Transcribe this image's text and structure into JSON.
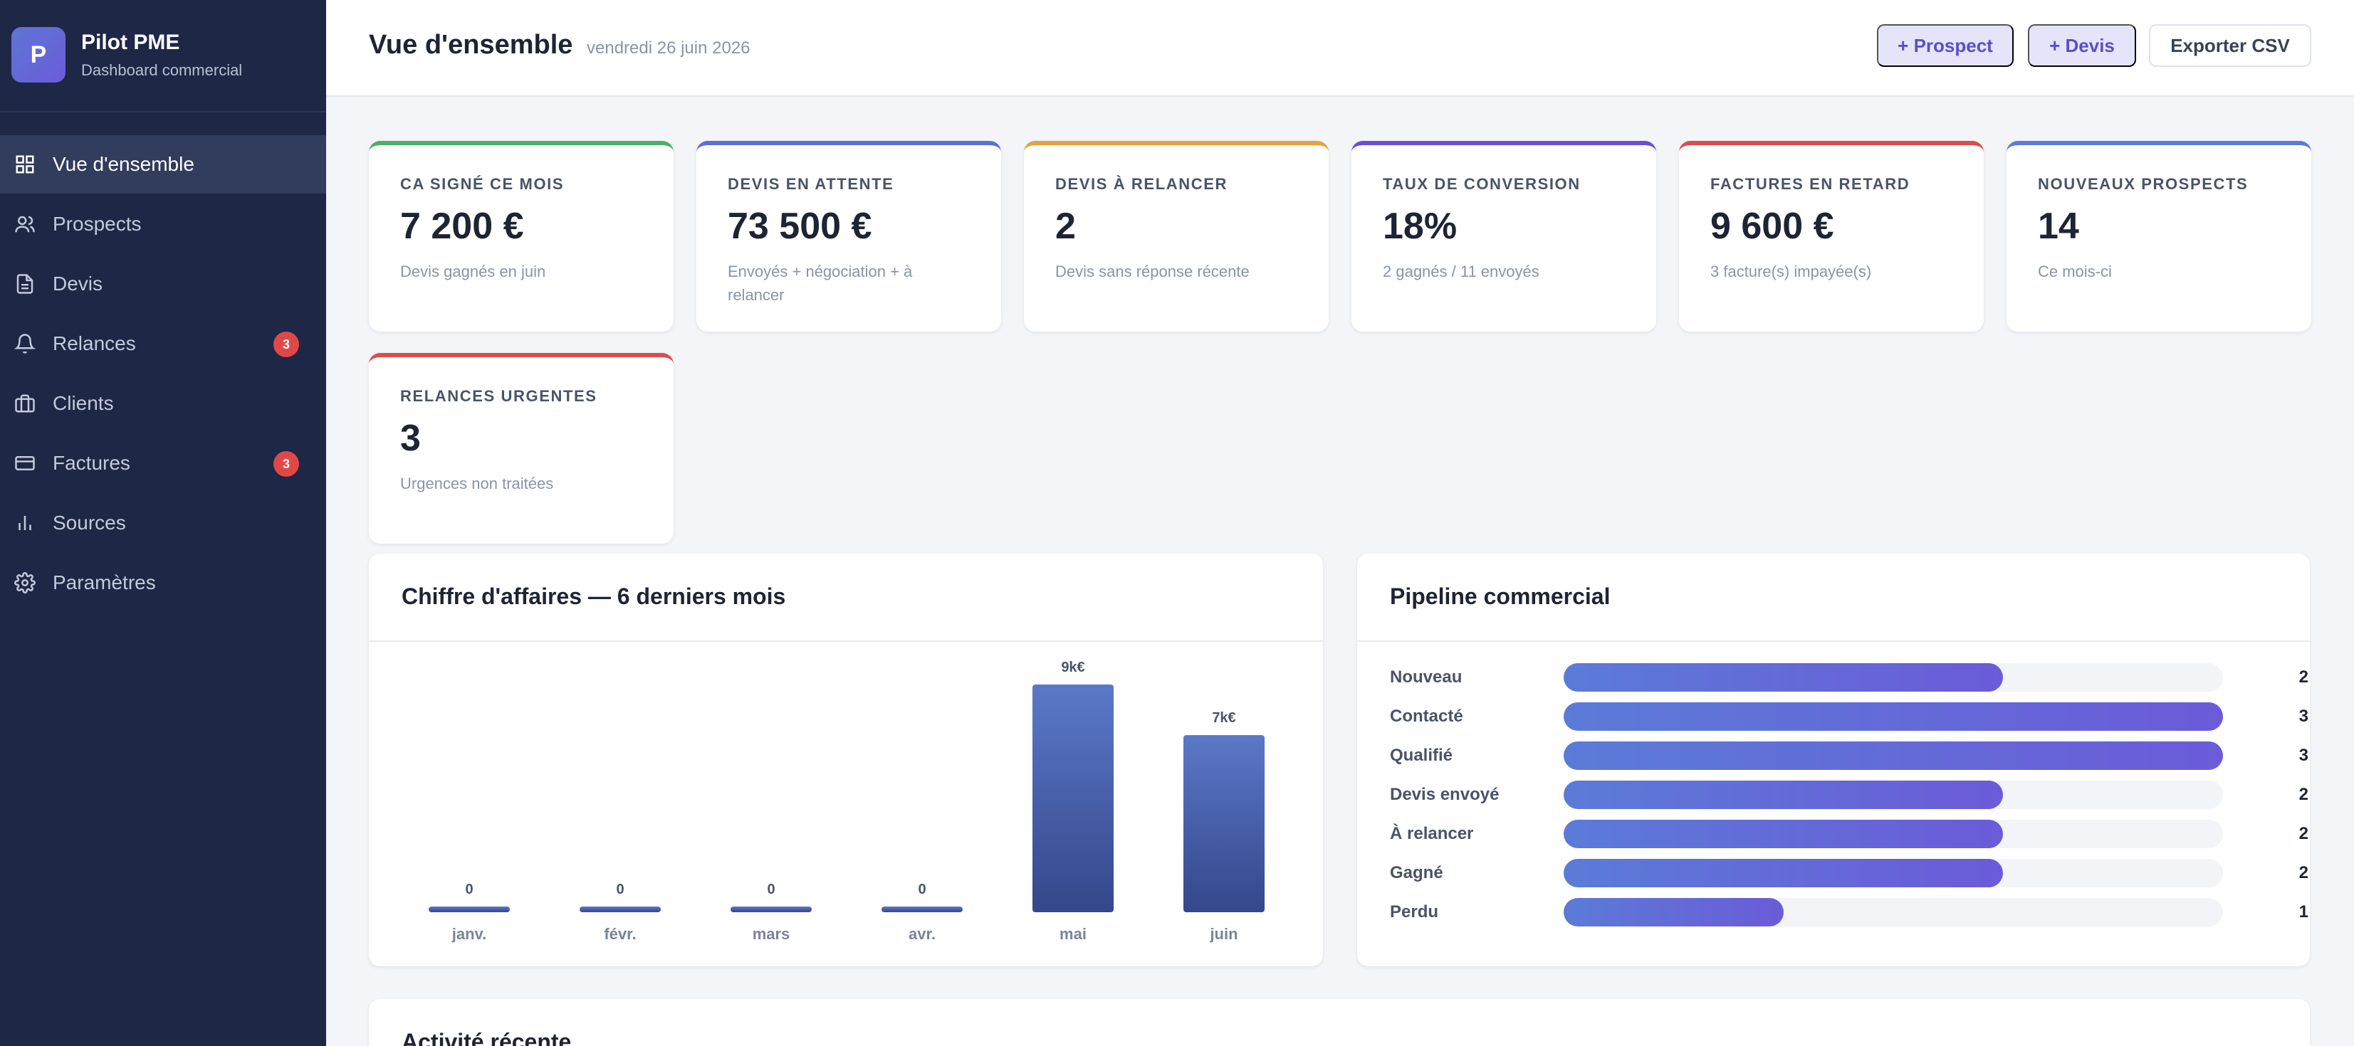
{
  "sidebar": {
    "brand": {
      "initial": "P",
      "name": "Pilot PME",
      "subtitle": "Dashboard commercial"
    },
    "items": [
      {
        "label": "Vue d'ensemble",
        "icon": "grid-icon",
        "active": true
      },
      {
        "label": "Prospects",
        "icon": "users-icon"
      },
      {
        "label": "Devis",
        "icon": "document-icon"
      },
      {
        "label": "Relances",
        "icon": "bell-icon",
        "badge": "3"
      },
      {
        "label": "Clients",
        "icon": "briefcase-icon"
      },
      {
        "label": "Factures",
        "icon": "credit-card-icon",
        "badge": "3"
      },
      {
        "label": "Sources",
        "icon": "bar-chart-icon"
      },
      {
        "label": "Paramètres",
        "icon": "gear-icon"
      }
    ]
  },
  "header": {
    "title": "Vue d'ensemble",
    "date": "vendredi 26 juin 2026",
    "buttons": {
      "prospect": "+ Prospect",
      "devis": "+ Devis",
      "export": "Exporter CSV"
    }
  },
  "kpis": [
    {
      "label": "CA signé ce mois",
      "value": "7 200 €",
      "sub": "Devis gagnés en juin",
      "accent": "#48b06a"
    },
    {
      "label": "Devis en attente",
      "value": "73 500 €",
      "sub": "Envoyés + négociation + à relancer",
      "accent": "#5b6fd6"
    },
    {
      "label": "Devis à relancer",
      "value": "2",
      "sub": "Devis sans réponse récente",
      "accent": "#e3a23b"
    },
    {
      "label": "Taux de conversion",
      "value": "18%",
      "sub": "2 gagnés / 11 envoyés",
      "accent": "#6a4fd6"
    },
    {
      "label": "Factures en retard",
      "value": "9 600 €",
      "sub": "3 facture(s) impayée(s)",
      "accent": "#dd4b4b"
    },
    {
      "label": "Nouveaux prospects",
      "value": "14",
      "sub": "Ce mois-ci",
      "accent": "#5b7bd8"
    },
    {
      "label": "Relances urgentes",
      "value": "3",
      "sub": "Urgences non traitées",
      "accent": "#dd4b4b"
    }
  ],
  "revenue_panel": {
    "title": "Chiffre d'affaires — 6 derniers mois"
  },
  "pipeline_panel": {
    "title": "Pipeline commercial",
    "max": 3,
    "stages": [
      {
        "label": "Nouveau",
        "value": 2
      },
      {
        "label": "Contacté",
        "value": 3
      },
      {
        "label": "Qualifié",
        "value": 3
      },
      {
        "label": "Devis envoyé",
        "value": 2
      },
      {
        "label": "À relancer",
        "value": 2
      },
      {
        "label": "Gagné",
        "value": 2
      },
      {
        "label": "Perdu",
        "value": 1
      }
    ]
  },
  "activity_panel": {
    "title": "Activité récente"
  },
  "chart_data": {
    "type": "bar",
    "title": "Chiffre d'affaires — 6 derniers mois",
    "categories": [
      "janv.",
      "févr.",
      "mars",
      "avr.",
      "mai",
      "juin"
    ],
    "values": [
      0,
      0,
      0,
      0,
      9,
      7
    ],
    "data_labels": [
      "0",
      "0",
      "0",
      "0",
      "9k€",
      "7k€"
    ],
    "unit": "k€",
    "ylim": [
      0,
      9
    ],
    "grid": false,
    "colors": {
      "bar_top": "#5b78c8",
      "bar_bottom": "#34478a"
    }
  },
  "colors": {
    "sidebar": "#1e2745",
    "accent": "#6b5bd8",
    "badge": "#e04848"
  }
}
